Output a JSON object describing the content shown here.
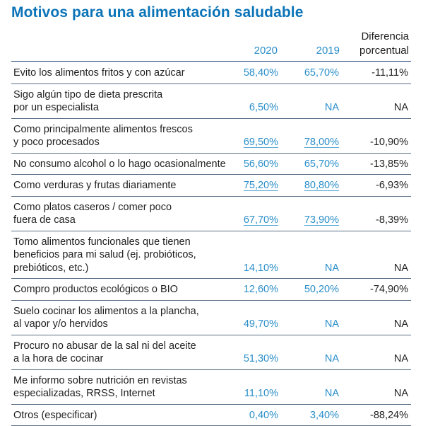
{
  "title": "Motivos para una alimentación saludable",
  "headers": {
    "year_2020": "2020",
    "year_2019": "2019",
    "diff_line1": "Diferencia",
    "diff_line2": "porcentual"
  },
  "rows": [
    {
      "label": [
        "Evito los alimentos fritos y con azúcar"
      ],
      "v2020": "58,40%",
      "v2019": "65,70%",
      "diff": "-11,11%"
    },
    {
      "label": [
        "Sigo algún tipo de dieta prescrita",
        "por un especialista"
      ],
      "v2020": "6,50%",
      "v2019": "NA",
      "diff": "NA"
    },
    {
      "label": [
        "Como principalmente alimentos frescos",
        "y poco procesados"
      ],
      "v2020": "69,50%",
      "v2019": "78,00%",
      "diff": "-10,90%"
    },
    {
      "label": [
        "No consumo alcohol o lo hago ocasionalmente"
      ],
      "v2020": "56,60%",
      "v2019": "65,70%",
      "diff": "-13,85%"
    },
    {
      "label": [
        "Como verduras y frutas diariamente"
      ],
      "v2020": "75,20%",
      "v2019": "80,80%",
      "diff": "-6,93%"
    },
    {
      "label": [
        "Como platos caseros / comer poco",
        "fuera de casa"
      ],
      "v2020": "67,70%",
      "v2019": "73,90%",
      "diff": "-8,39%"
    },
    {
      "label": [
        "Tomo alimentos funcionales que tienen",
        "beneficios para mi salud (ej. probióticos,",
        "prebióticos, etc.)"
      ],
      "v2020": "14,10%",
      "v2019": "NA",
      "diff": "NA"
    },
    {
      "label": [
        "Compro productos ecológicos o BIO"
      ],
      "v2020": "12,60%",
      "v2019": "50,20%",
      "diff": "-74,90%"
    },
    {
      "label": [
        "Suelo cocinar los alimentos a la plancha,",
        "al vapor y/o hervidos"
      ],
      "v2020": "49,70%",
      "v2019": "NA",
      "diff": "NA"
    },
    {
      "label": [
        "Procuro no abusar de la sal ni del aceite",
        "a la hora de cocinar"
      ],
      "v2020": "51,30%",
      "v2019": "NA",
      "diff": "NA"
    },
    {
      "label": [
        "Me informo sobre nutrición en revistas",
        "especializadas, RRSS, Internet"
      ],
      "v2020": "11,10%",
      "v2019": "NA",
      "diff": "NA"
    },
    {
      "label": [
        "Otros (especificar)"
      ],
      "v2020": "0,40%",
      "v2019": "3,40%",
      "diff": "-88,24%"
    }
  ]
}
